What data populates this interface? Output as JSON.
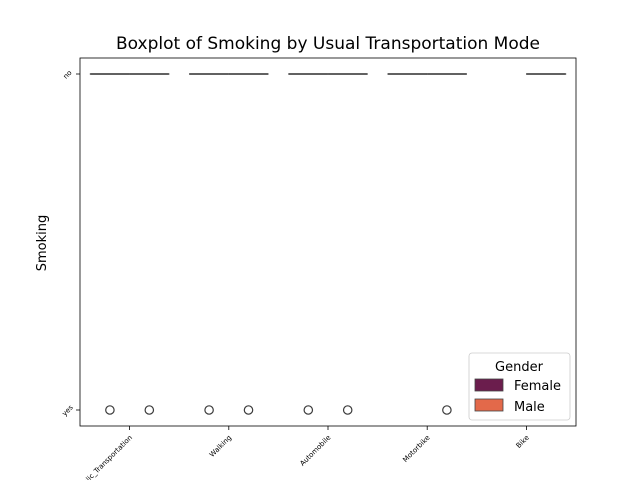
{
  "chart_data": {
    "type": "boxplot",
    "title": "Boxplot of Smoking by Usual Transportation Mode",
    "xlabel": "",
    "ylabel": "Smoking",
    "categories": [
      "Public_Transportation",
      "Walking",
      "Automobile",
      "Motorbike",
      "Bike"
    ],
    "y_categories": [
      "no",
      "yes"
    ],
    "series": [
      {
        "name": "Female",
        "color": "#6b1d4d",
        "boxes": [
          {
            "category": "Public_Transportation",
            "q1": "no",
            "median": "no",
            "q3": "no",
            "outliers": [
              "yes"
            ]
          },
          {
            "category": "Walking",
            "q1": "no",
            "median": "no",
            "q3": "no",
            "outliers": [
              "yes"
            ]
          },
          {
            "category": "Automobile",
            "q1": "no",
            "median": "no",
            "q3": "no",
            "outliers": [
              "yes"
            ]
          },
          {
            "category": "Motorbike",
            "q1": "no",
            "median": "no",
            "q3": "no",
            "outliers": []
          }
        ]
      },
      {
        "name": "Male",
        "color": "#e3694a",
        "boxes": [
          {
            "category": "Public_Transportation",
            "q1": "no",
            "median": "no",
            "q3": "no",
            "outliers": [
              "yes"
            ]
          },
          {
            "category": "Walking",
            "q1": "no",
            "median": "no",
            "q3": "no",
            "outliers": [
              "yes"
            ]
          },
          {
            "category": "Automobile",
            "q1": "no",
            "median": "no",
            "q3": "no",
            "outliers": [
              "yes"
            ]
          },
          {
            "category": "Motorbike",
            "q1": "no",
            "median": "no",
            "q3": "no",
            "outliers": [
              "yes"
            ]
          },
          {
            "category": "Bike",
            "q1": "no",
            "median": "no",
            "q3": "no",
            "outliers": []
          }
        ]
      }
    ],
    "legend": {
      "title": "Gender",
      "placement": "lower-right"
    },
    "grid": false
  }
}
